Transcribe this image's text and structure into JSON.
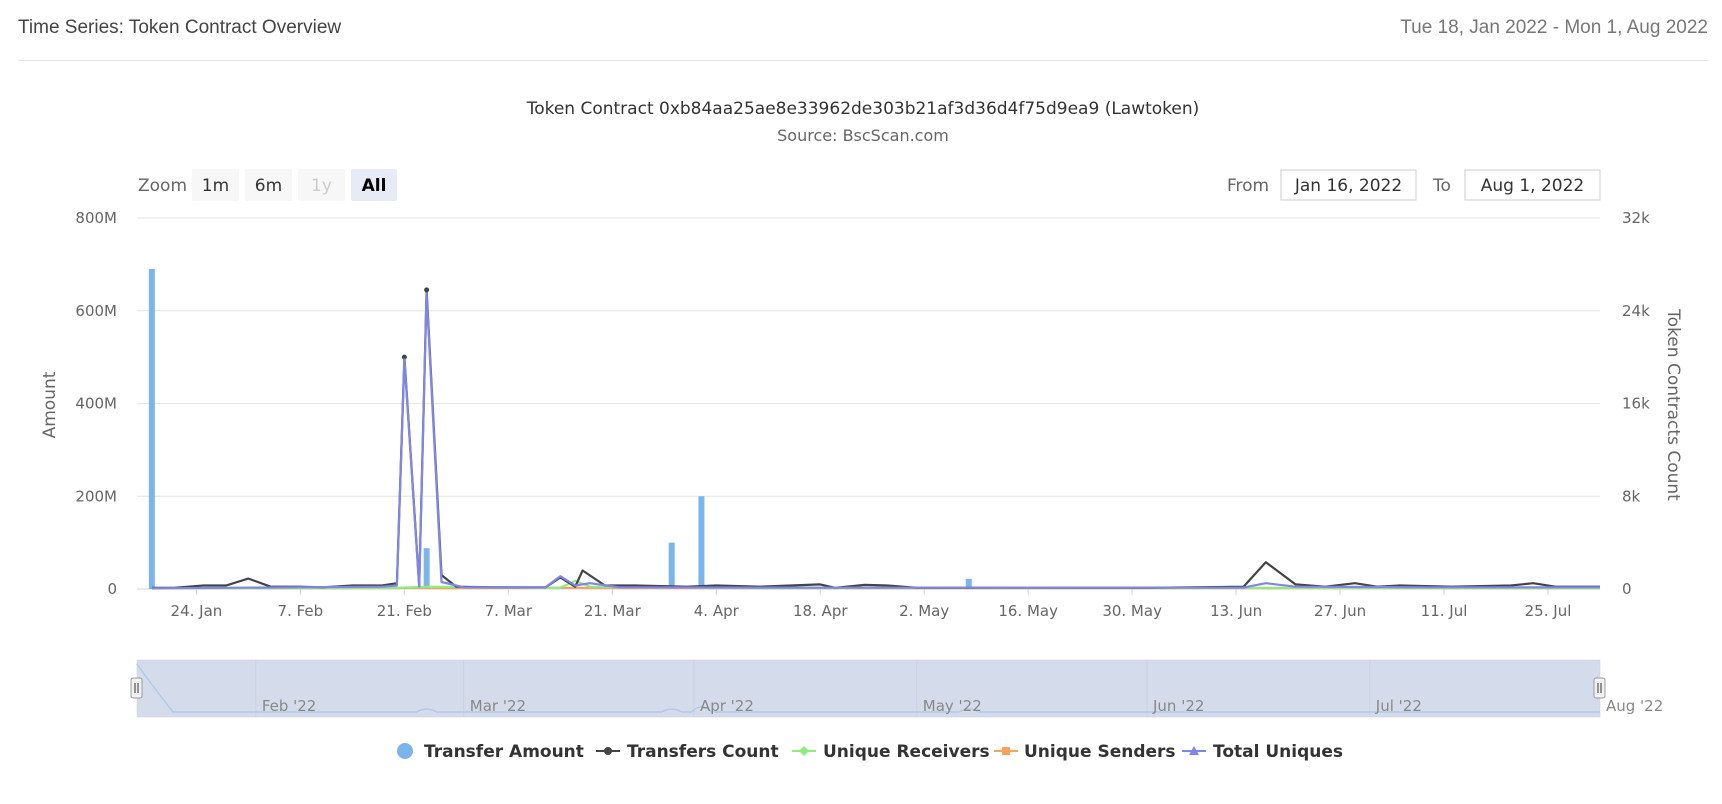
{
  "header": {
    "title": "Time Series: Token Contract Overview",
    "date_range": "Tue 18, Jan 2022 - Mon 1, Aug 2022"
  },
  "range_selector": {
    "zoom_label": "Zoom",
    "buttons": [
      {
        "label": "1m",
        "state": "normal"
      },
      {
        "label": "6m",
        "state": "normal"
      },
      {
        "label": "1y",
        "state": "disabled"
      },
      {
        "label": "All",
        "state": "selected"
      }
    ],
    "from_label": "From",
    "from_value": "Jan 16, 2022",
    "to_label": "To",
    "to_value": "Aug 1, 2022"
  },
  "navigator": {
    "labels": [
      "Feb '22",
      "Mar '22",
      "Apr '22",
      "May '22",
      "Jun '22",
      "Jul '22",
      "Aug '22"
    ]
  },
  "colors": {
    "transfer_amount": "#7cb5ec",
    "transfers_count": "#434348",
    "unique_receivers": "#90ed7d",
    "unique_senders": "#f7a35c",
    "total_uniques": "#8085e9",
    "navigator_mask": "#c5d0e6",
    "grid": "#e6e6e6"
  },
  "chart_data": {
    "type": "bar",
    "title": "Token Contract 0xb84aa25ae8e33962de303b21af3d36d4f75d9ea9 (Lawtoken)",
    "subtitle": "Source: BscScan.com",
    "x_range": [
      "2022-01-16",
      "2022-08-01"
    ],
    "x_ticks": [
      "24. Jan",
      "7. Feb",
      "21. Feb",
      "7. Mar",
      "21. Mar",
      "4. Apr",
      "18. Apr",
      "2. May",
      "16. May",
      "30. May",
      "13. Jun",
      "27. Jun",
      "11. Jul",
      "25. Jul"
    ],
    "y_left": {
      "label": "Amount",
      "ylim": [
        0,
        800000000
      ],
      "ticks": [
        "0",
        "200M",
        "400M",
        "600M",
        "800M"
      ]
    },
    "y_right": {
      "label": "Token Contracts Count",
      "ylim": [
        0,
        32000
      ],
      "ticks": [
        "0",
        "8k",
        "16k",
        "24k",
        "32k"
      ]
    },
    "legend": {
      "position": "bottom",
      "items": [
        "Transfer Amount",
        "Transfers Count",
        "Unique Receivers",
        "Unique Senders",
        "Total Uniques"
      ]
    },
    "series": [
      {
        "name": "Transfer Amount",
        "type": "column",
        "axis": "left",
        "points": [
          [
            "2022-01-18",
            690000000
          ],
          [
            "2022-02-24",
            88000000
          ],
          [
            "2022-03-29",
            100000000
          ],
          [
            "2022-04-02",
            200000000
          ],
          [
            "2022-05-08",
            22000000
          ]
        ]
      },
      {
        "name": "Transfers Count",
        "type": "line",
        "axis": "right",
        "points": [
          [
            "2022-01-18",
            100
          ],
          [
            "2022-01-21",
            100
          ],
          [
            "2022-01-25",
            300
          ],
          [
            "2022-01-28",
            300
          ],
          [
            "2022-01-31",
            900
          ],
          [
            "2022-02-03",
            200
          ],
          [
            "2022-02-07",
            200
          ],
          [
            "2022-02-10",
            150
          ],
          [
            "2022-02-14",
            300
          ],
          [
            "2022-02-18",
            300
          ],
          [
            "2022-02-20",
            500
          ],
          [
            "2022-02-21",
            20000
          ],
          [
            "2022-02-23",
            300
          ],
          [
            "2022-02-24",
            25800
          ],
          [
            "2022-02-26",
            1200
          ],
          [
            "2022-02-28",
            200
          ],
          [
            "2022-03-05",
            150
          ],
          [
            "2022-03-12",
            150
          ],
          [
            "2022-03-14",
            1000
          ],
          [
            "2022-03-16",
            200
          ],
          [
            "2022-03-17",
            1600
          ],
          [
            "2022-03-20",
            300
          ],
          [
            "2022-03-24",
            300
          ],
          [
            "2022-03-31",
            200
          ],
          [
            "2022-04-04",
            300
          ],
          [
            "2022-04-10",
            200
          ],
          [
            "2022-04-18",
            400
          ],
          [
            "2022-04-20",
            100
          ],
          [
            "2022-04-24",
            350
          ],
          [
            "2022-04-27",
            300
          ],
          [
            "2022-05-01",
            100
          ],
          [
            "2022-05-15",
            100
          ],
          [
            "2022-06-01",
            100
          ],
          [
            "2022-06-14",
            200
          ],
          [
            "2022-06-17",
            2300
          ],
          [
            "2022-06-21",
            400
          ],
          [
            "2022-06-25",
            200
          ],
          [
            "2022-06-29",
            500
          ],
          [
            "2022-07-02",
            200
          ],
          [
            "2022-07-05",
            300
          ],
          [
            "2022-07-12",
            200
          ],
          [
            "2022-07-20",
            300
          ],
          [
            "2022-07-23",
            500
          ],
          [
            "2022-07-26",
            200
          ],
          [
            "2022-08-01",
            200
          ]
        ]
      },
      {
        "name": "Unique Receivers",
        "type": "line",
        "axis": "right",
        "points": [
          [
            "2022-01-18",
            50
          ],
          [
            "2022-02-20",
            100
          ],
          [
            "2022-02-24",
            200
          ],
          [
            "2022-03-14",
            100
          ],
          [
            "2022-03-16",
            700
          ],
          [
            "2022-03-18",
            200
          ],
          [
            "2022-04-10",
            80
          ],
          [
            "2022-06-17",
            100
          ],
          [
            "2022-08-01",
            80
          ]
        ]
      },
      {
        "name": "Unique Senders",
        "type": "line",
        "axis": "right",
        "points": [
          [
            "2022-01-18",
            40
          ],
          [
            "2022-02-20",
            80
          ],
          [
            "2022-02-21",
            100
          ],
          [
            "2022-02-26",
            80
          ],
          [
            "2022-03-16",
            100
          ],
          [
            "2022-04-10",
            60
          ],
          [
            "2022-06-17",
            80
          ],
          [
            "2022-08-01",
            60
          ]
        ]
      },
      {
        "name": "Total Uniques",
        "type": "line",
        "axis": "right",
        "points": [
          [
            "2022-01-18",
            60
          ],
          [
            "2022-02-18",
            200
          ],
          [
            "2022-02-20",
            300
          ],
          [
            "2022-02-21",
            19800
          ],
          [
            "2022-02-23",
            200
          ],
          [
            "2022-02-24",
            25500
          ],
          [
            "2022-02-26",
            600
          ],
          [
            "2022-03-01",
            150
          ],
          [
            "2022-03-12",
            150
          ],
          [
            "2022-03-14",
            1100
          ],
          [
            "2022-03-16",
            300
          ],
          [
            "2022-03-18",
            500
          ],
          [
            "2022-03-22",
            150
          ],
          [
            "2022-04-10",
            120
          ],
          [
            "2022-05-15",
            100
          ],
          [
            "2022-06-14",
            120
          ],
          [
            "2022-06-17",
            500
          ],
          [
            "2022-06-21",
            200
          ],
          [
            "2022-07-10",
            150
          ],
          [
            "2022-08-01",
            150
          ]
        ]
      }
    ]
  }
}
